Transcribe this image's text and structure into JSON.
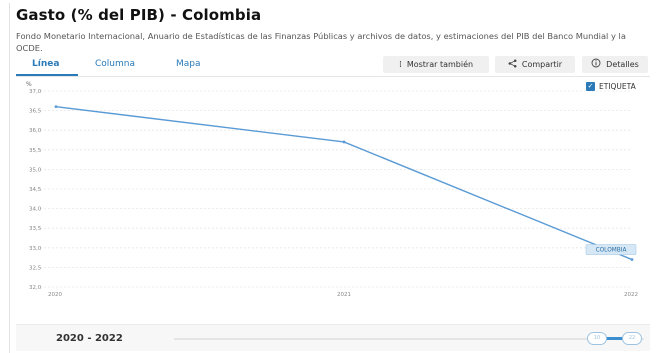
{
  "title": "Gasto (% del PIB) - Colombia",
  "source": "Fondo Monetario Internacional, Anuario de Estadísticas de las Finanzas Públicas y archivos de datos, y estimaciones del PIB del Banco Mundial y la OCDE.",
  "tabs": [
    {
      "label": "Línea",
      "active": true
    },
    {
      "label": "Columna",
      "active": false
    },
    {
      "label": "Mapa",
      "active": false
    }
  ],
  "toolbar": {
    "show_also_label": "Mostrar también",
    "share_label": "Compartir",
    "details_label": "Detalles"
  },
  "legend": {
    "label": "ETIQUETA",
    "checked": true,
    "color": "#2b7bb9"
  },
  "series_label": "COLOMBIA",
  "footer": {
    "range_label": "2020 - 2022",
    "handle_start": "10",
    "handle_end": "22"
  },
  "colors": {
    "accent": "#2b7bb9",
    "line": "#5b9bd5"
  },
  "chart_data": {
    "type": "line",
    "ylabel": "%",
    "x": [
      "2020",
      "2021",
      "2022"
    ],
    "series": [
      {
        "name": "Colombia",
        "values": [
          36.6,
          35.7,
          32.7
        ]
      }
    ],
    "ylim": [
      32.0,
      37.0
    ],
    "yticks": [
      "32,0",
      "32,5",
      "33,0",
      "33,5",
      "34,0",
      "34,5",
      "35,0",
      "35,5",
      "36,0",
      "36,5",
      "37,0"
    ],
    "grid": true,
    "legend": "top-right"
  }
}
